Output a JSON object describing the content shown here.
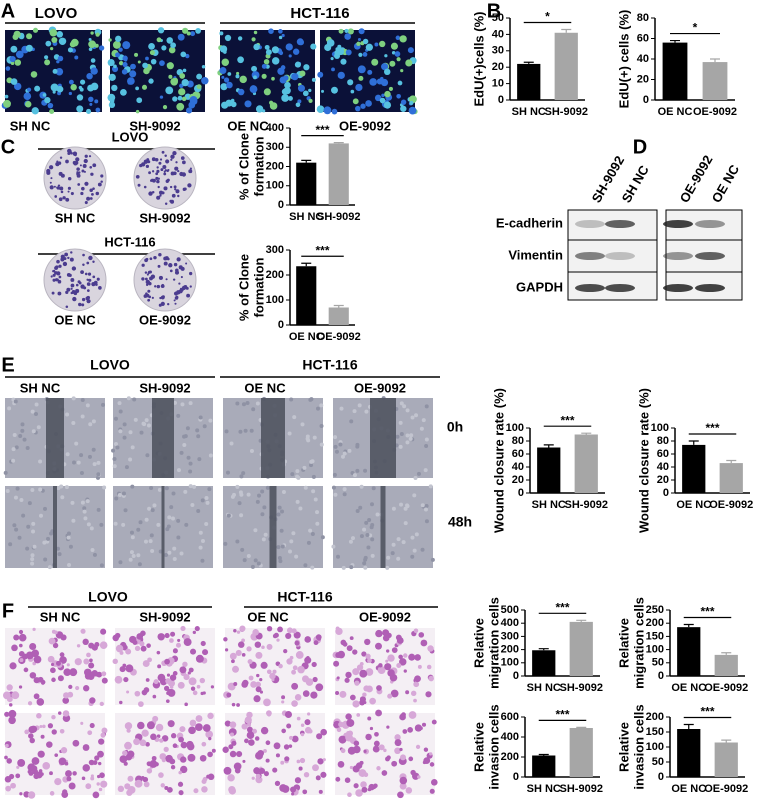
{
  "panel_labels": [
    "A",
    "B",
    "C",
    "D",
    "E",
    "F"
  ],
  "panel_a": {
    "groups": [
      {
        "title": "LOVO",
        "labels": [
          "SH NC",
          "SH-9092"
        ]
      },
      {
        "title": "HCT-116",
        "labels": [
          "OE NC",
          "OE-9092"
        ]
      }
    ]
  },
  "panel_c": {
    "groups": [
      {
        "title": "LOVO",
        "labels": [
          "SH NC",
          "SH-9092"
        ]
      },
      {
        "title": "HCT-116",
        "labels": [
          "OE NC",
          "OE-9092"
        ]
      }
    ]
  },
  "panel_d": {
    "lanes": [
      "SH-9092",
      "SH NC",
      "OE-9092",
      "OE NC"
    ],
    "proteins": [
      "E-cadherin",
      "Vimentin",
      "GAPDH"
    ]
  },
  "panel_e": {
    "groups": [
      {
        "title": "LOVO",
        "labels": [
          "SH NC",
          "SH-9092"
        ]
      },
      {
        "title": "HCT-116",
        "labels": [
          "OE NC",
          "OE-9092"
        ]
      }
    ],
    "timepoints": [
      "0h",
      "48h"
    ]
  },
  "panel_f": {
    "groups": [
      {
        "title": "LOVO",
        "labels": [
          "SH NC",
          "SH-9092"
        ]
      },
      {
        "title": "HCT-116",
        "labels": [
          "OE NC",
          "OE-9092"
        ]
      }
    ]
  },
  "chart_data": [
    {
      "type": "bar",
      "ylabel": [
        "EdU(+)cells (%)"
      ],
      "categories": [
        "SH NC",
        "SH-9092"
      ],
      "values": [
        22,
        41
      ],
      "errors": [
        1,
        2
      ],
      "colors": [
        "#000000",
        "#a6a6a6"
      ],
      "ylim": [
        0,
        50
      ],
      "yticks": [
        0,
        10,
        20,
        30,
        40,
        50
      ],
      "annotation": "*"
    },
    {
      "type": "bar",
      "ylabel": [
        "EdU(+) cells (%)"
      ],
      "categories": [
        "OE NC",
        "OE-9092"
      ],
      "values": [
        56,
        37
      ],
      "errors": [
        2,
        3
      ],
      "colors": [
        "#000000",
        "#a6a6a6"
      ],
      "ylim": [
        0,
        80
      ],
      "yticks": [
        0,
        20,
        40,
        60,
        80
      ],
      "annotation": "*"
    },
    {
      "type": "bar",
      "ylabel": [
        "% of Clone",
        "formation"
      ],
      "categories": [
        "SH NC",
        "SH-9092"
      ],
      "values": [
        220,
        320
      ],
      "errors": [
        12,
        4
      ],
      "colors": [
        "#000000",
        "#a6a6a6"
      ],
      "ylim": [
        0,
        400
      ],
      "yticks": [
        0,
        100,
        200,
        300,
        400
      ],
      "annotation": "***"
    },
    {
      "type": "bar",
      "ylabel": [
        "% of Clone",
        "formation"
      ],
      "categories": [
        "OE NC",
        "OE-9092"
      ],
      "values": [
        235,
        70
      ],
      "errors": [
        12,
        8
      ],
      "colors": [
        "#000000",
        "#a6a6a6"
      ],
      "ylim": [
        0,
        300
      ],
      "yticks": [
        0,
        100,
        200,
        300
      ],
      "annotation": "***"
    },
    {
      "type": "bar",
      "ylabel": [
        "Wound closure rate (%)"
      ],
      "categories": [
        "SH NC",
        "SH-9092"
      ],
      "values": [
        70,
        90
      ],
      "errors": [
        4,
        2
      ],
      "colors": [
        "#000000",
        "#a6a6a6"
      ],
      "ylim": [
        0,
        100
      ],
      "yticks": [
        0,
        20,
        40,
        60,
        80,
        100
      ],
      "annotation": "***"
    },
    {
      "type": "bar",
      "ylabel": [
        "Wound closure rate (%)"
      ],
      "categories": [
        "OE NC",
        "OE-9092"
      ],
      "values": [
        74,
        46
      ],
      "errors": [
        6,
        4
      ],
      "colors": [
        "#000000",
        "#a6a6a6"
      ],
      "ylim": [
        0,
        100
      ],
      "yticks": [
        0,
        20,
        40,
        60,
        80,
        100
      ],
      "annotation": "***"
    },
    {
      "type": "bar",
      "ylabel": [
        "Relative",
        "migration cells"
      ],
      "categories": [
        "SH NC",
        "SH-9092"
      ],
      "values": [
        195,
        410
      ],
      "errors": [
        12,
        12
      ],
      "colors": [
        "#000000",
        "#a6a6a6"
      ],
      "ylim": [
        0,
        500
      ],
      "yticks": [
        0,
        100,
        200,
        300,
        400,
        500
      ],
      "annotation": "***"
    },
    {
      "type": "bar",
      "ylabel": [
        "Relative",
        "migration cells"
      ],
      "categories": [
        "OE NC",
        "OE-9092"
      ],
      "values": [
        185,
        80
      ],
      "errors": [
        10,
        8
      ],
      "colors": [
        "#000000",
        "#a6a6a6"
      ],
      "ylim": [
        0,
        250
      ],
      "yticks": [
        0,
        50,
        100,
        150,
        200,
        250
      ],
      "annotation": "***"
    },
    {
      "type": "bar",
      "ylabel": [
        "Relative",
        "invasion cells"
      ],
      "categories": [
        "SH NC",
        "SH-9092"
      ],
      "values": [
        215,
        490
      ],
      "errors": [
        10,
        6
      ],
      "colors": [
        "#000000",
        "#a6a6a6"
      ],
      "ylim": [
        0,
        600
      ],
      "yticks": [
        0,
        200,
        400,
        600
      ],
      "annotation": "***"
    },
    {
      "type": "bar",
      "ylabel": [
        "Relative",
        "invasion cells"
      ],
      "categories": [
        "OE NC",
        "OE-9092"
      ],
      "values": [
        160,
        115
      ],
      "errors": [
        15,
        8
      ],
      "colors": [
        "#000000",
        "#a6a6a6"
      ],
      "ylim": [
        0,
        200
      ],
      "yticks": [
        0,
        50,
        100,
        150,
        200
      ],
      "annotation": "***"
    }
  ]
}
